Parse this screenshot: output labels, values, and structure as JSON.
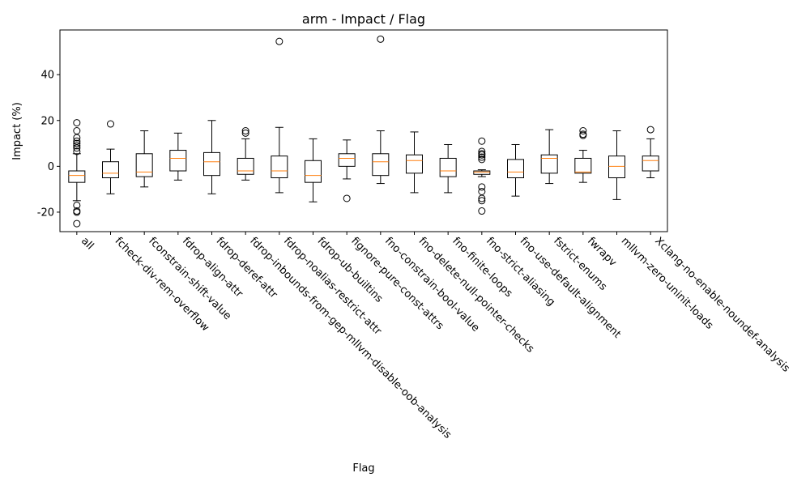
{
  "chart_data": {
    "type": "box",
    "title": "arm - Impact / Flag",
    "xlabel": "Flag",
    "ylabel": "Impact (%)",
    "ylim": [
      -28.5,
      59.5
    ],
    "yticks": [
      -20,
      0,
      20,
      40
    ],
    "grid": false,
    "categories": [
      "all",
      "fcheck-div-rem-overflow",
      "fconstrain-shift-value",
      "fdrop-align-attr",
      "fdrop-deref-attr",
      "fdrop-inbounds-from-gep-mllvm-disable-oob-analysis",
      "fdrop-noalias-restrict-attr",
      "fdrop-ub-builtins",
      "fignore-pure-const-attrs",
      "fno-constrain-bool-value",
      "fno-delete-null-pointer-checks",
      "fno-finite-loops",
      "fno-strict-aliasing",
      "fno-use-default-alignment",
      "fstrict-enums",
      "fwrapv",
      "mllvm-zero-uninit-loads",
      "Xclang-no-enable-noundef-analysis"
    ],
    "boxes": [
      {
        "whisker_low": -15,
        "q1": -7,
        "median": -4,
        "q3": -2,
        "whisker_high": 5.5,
        "outliers": [
          19,
          15.5,
          12.5,
          11,
          10,
          9,
          8,
          6.5,
          -17,
          -19.5,
          -20,
          -25
        ]
      },
      {
        "whisker_low": -12,
        "q1": -5,
        "median": -3,
        "q3": 2,
        "whisker_high": 7.5,
        "outliers": [
          18.5
        ]
      },
      {
        "whisker_low": -9,
        "q1": -4.5,
        "median": -2.5,
        "q3": 5.5,
        "whisker_high": 15.5,
        "outliers": []
      },
      {
        "whisker_low": -6,
        "q1": -2,
        "median": 3.5,
        "q3": 7,
        "whisker_high": 14.5,
        "outliers": []
      },
      {
        "whisker_low": -12,
        "q1": -4,
        "median": 2,
        "q3": 6,
        "whisker_high": 20,
        "outliers": []
      },
      {
        "whisker_low": -6,
        "q1": -3.5,
        "median": -2,
        "q3": 3.5,
        "whisker_high": 12,
        "outliers": [
          14.5,
          15.5
        ]
      },
      {
        "whisker_low": -11.5,
        "q1": -5,
        "median": -2,
        "q3": 4.5,
        "whisker_high": 17,
        "outliers": [
          54.5
        ]
      },
      {
        "whisker_low": -15.5,
        "q1": -7,
        "median": -4,
        "q3": 2.5,
        "whisker_high": 12,
        "outliers": []
      },
      {
        "whisker_low": -5.5,
        "q1": 0,
        "median": 3.5,
        "q3": 5.5,
        "whisker_high": 11.5,
        "outliers": [
          -14
        ]
      },
      {
        "whisker_low": -7.5,
        "q1": -4,
        "median": 2,
        "q3": 5.5,
        "whisker_high": 15.5,
        "outliers": [
          55.5
        ]
      },
      {
        "whisker_low": -11.5,
        "q1": -3,
        "median": 2.5,
        "q3": 5,
        "whisker_high": 15,
        "outliers": []
      },
      {
        "whisker_low": -11.5,
        "q1": -4.5,
        "median": -2,
        "q3": 3.5,
        "whisker_high": 9.5,
        "outliers": []
      },
      {
        "whisker_low": -4.5,
        "q1": -3.5,
        "median": -2.5,
        "q3": -2,
        "whisker_high": -1.5,
        "outliers": [
          11,
          6.5,
          5.5,
          5,
          4,
          3,
          -9,
          -11,
          -14,
          -15,
          -19.5
        ]
      },
      {
        "whisker_low": -13,
        "q1": -5,
        "median": -2.5,
        "q3": 3,
        "whisker_high": 9.5,
        "outliers": []
      },
      {
        "whisker_low": -7.5,
        "q1": -3,
        "median": 3.5,
        "q3": 5,
        "whisker_high": 16,
        "outliers": []
      },
      {
        "whisker_low": -7,
        "q1": -3,
        "median": -2.5,
        "q3": 3.5,
        "whisker_high": 7,
        "outliers": [
          15.5,
          14,
          13.5
        ]
      },
      {
        "whisker_low": -14.5,
        "q1": -5,
        "median": 0,
        "q3": 4.5,
        "whisker_high": 15.5,
        "outliers": []
      },
      {
        "whisker_low": -5,
        "q1": -2,
        "median": 2.5,
        "q3": 4.5,
        "whisker_high": 12,
        "outliers": [
          16
        ]
      }
    ],
    "colors": {
      "box": "#000000",
      "median": "#ff7f0e",
      "outlier_edge": "#000000"
    }
  }
}
